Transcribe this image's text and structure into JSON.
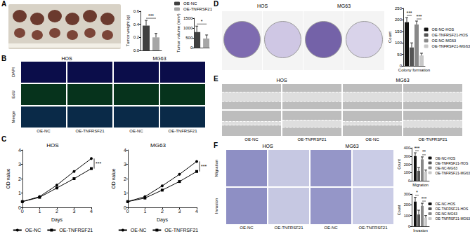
{
  "panel_labels": [
    "A",
    "B",
    "C",
    "D",
    "E",
    "F"
  ],
  "image_panels": {
    "B": {
      "groups": [
        "HOS",
        "MG63"
      ],
      "columns": [
        "OE-NC",
        "OE-TNFRSF21",
        "OE-NC",
        "OE-TNFRSF21"
      ],
      "rows": [
        "DAPI",
        "EdU",
        "Merge"
      ]
    },
    "D": {
      "groups": [
        "HOS",
        "MG63"
      ]
    },
    "E": {
      "groups": [
        "HOS",
        "MG63"
      ],
      "columns": [
        "OE-NC",
        "OE-TNFRSF21",
        "OE-NC",
        "OE-TNFRSF21"
      ]
    },
    "F": {
      "groups": [
        "HOS",
        "MG63"
      ],
      "columns": [
        "OE-NC",
        "OE-TNFRSF21",
        "OE-NC",
        "OE-TNFRSF21"
      ],
      "rows": [
        "Migration",
        "Invasion"
      ]
    }
  },
  "chart_data": [
    {
      "type": "bar",
      "ylabel": "Tumor weight (g)",
      "categories": [
        null
      ],
      "series": [
        {
          "name": "OE-NC",
          "color": "#404040",
          "values": [
            0.38
          ],
          "errors": [
            0.08
          ]
        },
        {
          "name": "OE-TNFRSF21",
          "color": "#a6a6a6",
          "values": [
            0.2
          ],
          "errors": [
            0.06
          ]
        }
      ],
      "ylim": [
        0,
        0.6
      ],
      "yticks": [
        {
          "value": 0,
          "label": "0.0"
        },
        0.2,
        0.4,
        0.6
      ],
      "annotations": [
        {
          "text": "***",
          "between": [
            0,
            1
          ]
        }
      ]
    },
    {
      "type": "bar",
      "ylabel": "Tumor volume (mm³)",
      "categories": [
        null
      ],
      "series": [
        {
          "name": "OE-NC",
          "color": "#404040",
          "values": [
            800
          ],
          "errors": [
            300
          ]
        },
        {
          "name": "OE-TNFRSF21",
          "color": "#a6a6a6",
          "values": [
            470
          ],
          "errors": [
            180
          ]
        }
      ],
      "ylim": [
        0,
        1500
      ],
      "yticks": [
        0,
        500,
        1000,
        1500
      ],
      "legend": "top",
      "annotations": [
        {
          "text": "*",
          "between": [
            0,
            1
          ]
        }
      ]
    },
    {
      "type": "line",
      "title": "HOS",
      "xlabel": "Days",
      "ylabel": "OD value",
      "x": [
        0,
        1,
        2,
        3,
        4
      ],
      "xlim": [
        0,
        4
      ],
      "xticks": [
        0,
        1,
        2,
        3,
        4
      ],
      "ylim": [
        0,
        4
      ],
      "yticks": [
        0,
        1,
        2,
        3,
        4
      ],
      "series": [
        {
          "name": "OE-NC",
          "color": "#000000",
          "marker": "circle",
          "values": [
            0.4,
            0.75,
            1.55,
            2.5,
            3.4
          ]
        },
        {
          "name": "OE-TNFRSF21",
          "color": "#000000",
          "marker": "square",
          "values": [
            0.4,
            0.7,
            1.35,
            2.0,
            2.7
          ]
        }
      ],
      "legend": "bottom",
      "annotations": [
        {
          "text": "***",
          "x": 4
        }
      ]
    },
    {
      "type": "line",
      "title": "MG63",
      "xlabel": "Days",
      "ylabel": "OD value",
      "x": [
        0,
        1,
        2,
        3,
        4
      ],
      "xlim": [
        0,
        4
      ],
      "xticks": [
        0,
        1,
        2,
        3,
        4
      ],
      "ylim": [
        0,
        4
      ],
      "yticks": [
        0,
        1,
        2,
        3,
        4
      ],
      "series": [
        {
          "name": "OE-NC",
          "color": "#000000",
          "marker": "circle",
          "values": [
            0.4,
            0.75,
            1.5,
            2.3,
            3.2
          ]
        },
        {
          "name": "OE-TNFRSF21",
          "color": "#000000",
          "marker": "square",
          "values": [
            0.4,
            0.65,
            1.2,
            1.8,
            2.5
          ]
        }
      ],
      "legend": "bottom",
      "annotations": [
        {
          "text": "***",
          "x": 4
        }
      ]
    },
    {
      "type": "bar",
      "ylabel": "Count",
      "categories": [
        "Colony formation"
      ],
      "series": [
        {
          "name": "OE-NC-HOS",
          "color": "#111111",
          "values": [
            190
          ],
          "errors": [
            20
          ]
        },
        {
          "name": "OE-TNFRSF21-HOS",
          "color": "#555555",
          "values": [
            80
          ],
          "errors": [
            20
          ]
        },
        {
          "name": "OE-NC-MG63",
          "color": "#888888",
          "values": [
            180
          ],
          "errors": [
            15
          ]
        },
        {
          "name": "OE-TNFRSF21-MG63",
          "color": "#c8c8c8",
          "values": [
            45
          ],
          "errors": [
            10
          ]
        }
      ],
      "ylim": [
        0,
        250
      ],
      "yticks": [
        0,
        50,
        100,
        150,
        200,
        250
      ],
      "legend": "right",
      "annotations": [
        {
          "text": "***",
          "between": [
            0,
            1
          ]
        },
        {
          "text": "***",
          "between": [
            2,
            3
          ]
        }
      ]
    },
    {
      "type": "bar",
      "ylabel": "Count",
      "categories": [
        "Migration"
      ],
      "series": [
        {
          "name": "OE-NC-HOS",
          "color": "#111111",
          "values": [
            300
          ],
          "errors": [
            40
          ]
        },
        {
          "name": "OE-TNFRSF21-HOS",
          "color": "#555555",
          "values": [
            120
          ],
          "errors": [
            40
          ]
        },
        {
          "name": "OE-NC-MG63",
          "color": "#888888",
          "values": [
            260
          ],
          "errors": [
            30
          ]
        },
        {
          "name": "OE-TNFRSF21-MG63",
          "color": "#c8c8c8",
          "values": [
            110
          ],
          "errors": [
            20
          ]
        }
      ],
      "ylim": [
        0,
        400
      ],
      "yticks": [
        0,
        100,
        200,
        300,
        400
      ],
      "legend": "right",
      "annotations": [
        {
          "text": "***",
          "between": [
            0,
            1
          ]
        },
        {
          "text": "**",
          "between": [
            2,
            3
          ]
        }
      ]
    },
    {
      "type": "bar",
      "ylabel": "Count",
      "categories": [
        "Invasion"
      ],
      "series": [
        {
          "name": "OE-NC-HOS",
          "color": "#111111",
          "values": [
            230
          ],
          "errors": [
            40
          ]
        },
        {
          "name": "OE-TNFRSF21-HOS",
          "color": "#555555",
          "values": [
            110
          ],
          "errors": [
            40
          ]
        },
        {
          "name": "OE-NC-MG63",
          "color": "#888888",
          "values": [
            190
          ],
          "errors": [
            25
          ]
        },
        {
          "name": "OE-TNFRSF21-MG63",
          "color": "#c8c8c8",
          "values": [
            80
          ],
          "errors": [
            20
          ]
        }
      ],
      "ylim": [
        0,
        300
      ],
      "yticks": [
        0,
        100,
        200,
        300
      ],
      "legend": "right",
      "annotations": [
        {
          "text": "*",
          "between": [
            0,
            1
          ]
        },
        {
          "text": "***",
          "between": [
            2,
            3
          ]
        }
      ]
    }
  ]
}
